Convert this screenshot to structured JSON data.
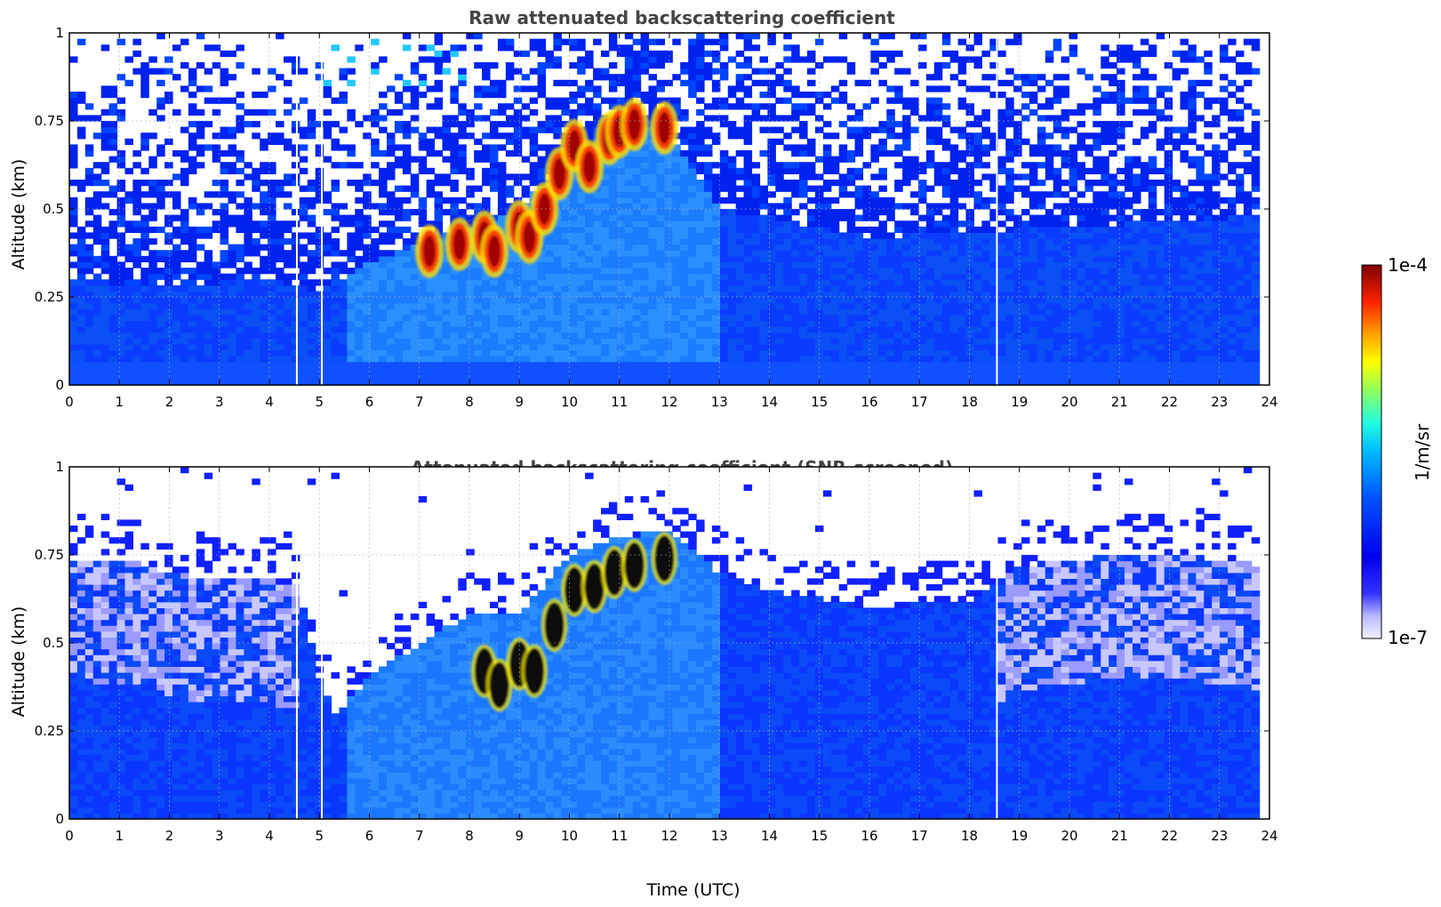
{
  "chart_data": [
    {
      "type": "heatmap",
      "title": "Raw attenuated backscattering coefficient",
      "xlabel": "",
      "ylabel": "Altitude (km)",
      "xlim": [
        0,
        24
      ],
      "ylim": [
        0,
        1
      ],
      "xticks": [
        "0",
        "1",
        "2",
        "3",
        "4",
        "5",
        "6",
        "7",
        "8",
        "9",
        "10",
        "11",
        "12",
        "13",
        "14",
        "15",
        "16",
        "17",
        "18",
        "19",
        "20",
        "21",
        "22",
        "23",
        "24"
      ],
      "yticks": [
        "0",
        "0.25",
        "0.5",
        "0.75",
        "1"
      ],
      "grid": true,
      "data_gaps_utc": [
        4.55,
        5.05,
        18.55
      ],
      "data_end_utc": 23.8,
      "aerosol_layer_top_km": [
        {
          "x": 0,
          "y": 0.3
        },
        {
          "x": 2,
          "y": 0.28
        },
        {
          "x": 4,
          "y": 0.3
        },
        {
          "x": 5,
          "y": 0.27
        },
        {
          "x": 6,
          "y": 0.35
        },
        {
          "x": 7,
          "y": 0.4
        },
        {
          "x": 8,
          "y": 0.45
        },
        {
          "x": 9,
          "y": 0.5
        },
        {
          "x": 10,
          "y": 0.65
        },
        {
          "x": 11,
          "y": 0.75
        },
        {
          "x": 12,
          "y": 0.72
        },
        {
          "x": 13,
          "y": 0.5
        },
        {
          "x": 16,
          "y": 0.42
        },
        {
          "x": 20,
          "y": 0.45
        },
        {
          "x": 23.8,
          "y": 0.48
        }
      ],
      "high_values": [
        {
          "x": 7.2,
          "y": 0.38
        },
        {
          "x": 7.8,
          "y": 0.4
        },
        {
          "x": 8.3,
          "y": 0.42
        },
        {
          "x": 8.5,
          "y": 0.38
        },
        {
          "x": 9.0,
          "y": 0.45
        },
        {
          "x": 9.2,
          "y": 0.42
        },
        {
          "x": 9.5,
          "y": 0.5
        },
        {
          "x": 9.8,
          "y": 0.6
        },
        {
          "x": 10.1,
          "y": 0.68
        },
        {
          "x": 10.4,
          "y": 0.62
        },
        {
          "x": 10.8,
          "y": 0.7
        },
        {
          "x": 11.0,
          "y": 0.72
        },
        {
          "x": 11.3,
          "y": 0.74
        },
        {
          "x": 11.9,
          "y": 0.73
        }
      ]
    },
    {
      "type": "heatmap",
      "title": "Attenuated backscattering coefficient (SNR-screened)",
      "xlabel": "Time (UTC)",
      "ylabel": "Altitude (km)",
      "xlim": [
        0,
        24
      ],
      "ylim": [
        0,
        1
      ],
      "xticks": [
        "0",
        "1",
        "2",
        "3",
        "4",
        "5",
        "6",
        "7",
        "8",
        "9",
        "10",
        "11",
        "12",
        "13",
        "14",
        "15",
        "16",
        "17",
        "18",
        "19",
        "20",
        "21",
        "22",
        "23",
        "24"
      ],
      "yticks": [
        "0",
        "0.25",
        "0.5",
        "0.75",
        "1"
      ],
      "grid": true,
      "data_gaps_utc": [
        4.55,
        5.05,
        18.55
      ],
      "data_end_utc": 23.8,
      "screened_signal_top_km": [
        {
          "x": 0,
          "y": 0.74
        },
        {
          "x": 1,
          "y": 0.74
        },
        {
          "x": 2,
          "y": 0.7
        },
        {
          "x": 3,
          "y": 0.68
        },
        {
          "x": 4,
          "y": 0.68
        },
        {
          "x": 4.6,
          "y": 0.66
        },
        {
          "x": 5.0,
          "y": 0.4
        },
        {
          "x": 5.3,
          "y": 0.3
        },
        {
          "x": 6,
          "y": 0.4
        },
        {
          "x": 7,
          "y": 0.5
        },
        {
          "x": 8,
          "y": 0.58
        },
        {
          "x": 9,
          "y": 0.58
        },
        {
          "x": 10,
          "y": 0.75
        },
        {
          "x": 11,
          "y": 0.8
        },
        {
          "x": 12,
          "y": 0.82
        },
        {
          "x": 13,
          "y": 0.7
        },
        {
          "x": 14,
          "y": 0.65
        },
        {
          "x": 16,
          "y": 0.6
        },
        {
          "x": 18,
          "y": 0.62
        },
        {
          "x": 19,
          "y": 0.72
        },
        {
          "x": 21,
          "y": 0.75
        },
        {
          "x": 23,
          "y": 0.74
        },
        {
          "x": 23.8,
          "y": 0.72
        }
      ],
      "high_values": [
        {
          "x": 8.3,
          "y": 0.42
        },
        {
          "x": 8.6,
          "y": 0.38
        },
        {
          "x": 9.0,
          "y": 0.44
        },
        {
          "x": 9.3,
          "y": 0.42
        },
        {
          "x": 9.7,
          "y": 0.55
        },
        {
          "x": 10.1,
          "y": 0.65
        },
        {
          "x": 10.5,
          "y": 0.66
        },
        {
          "x": 10.9,
          "y": 0.7
        },
        {
          "x": 11.3,
          "y": 0.72
        },
        {
          "x": 11.9,
          "y": 0.74
        }
      ]
    }
  ],
  "colorbar": {
    "max_label": "1e-4",
    "min_label": "1e-7",
    "label": "1/m/sr",
    "scale": "log",
    "colormap": "jet"
  }
}
